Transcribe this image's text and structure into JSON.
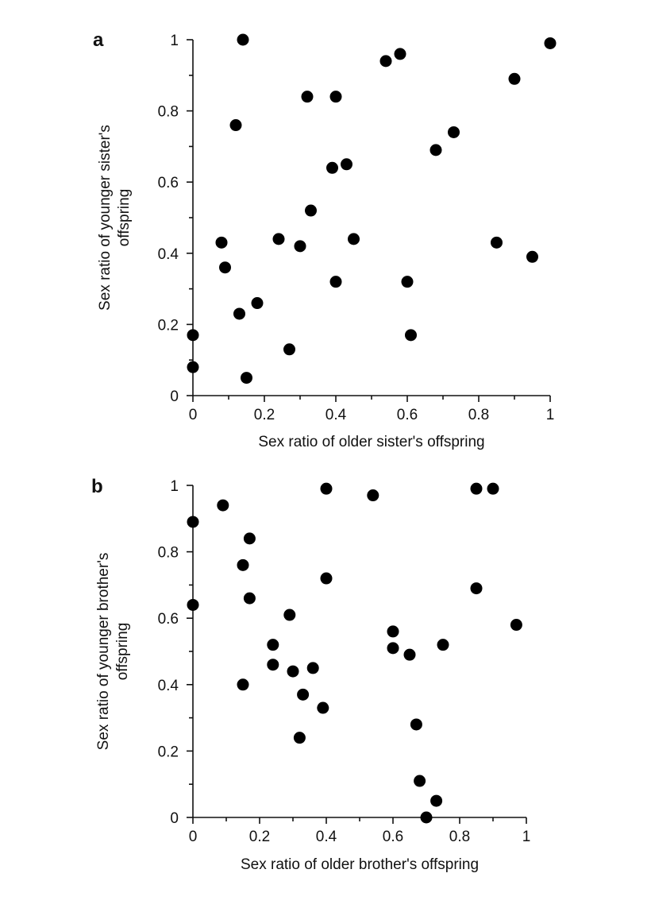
{
  "chart_data": [
    {
      "type": "scatter",
      "panel_label": "a",
      "xlabel": "Sex ratio of older sister's offspring",
      "ylabel_lines": [
        "Sex ratio of younger sister's",
        "offspring"
      ],
      "xlim": [
        0,
        1
      ],
      "ylim": [
        0,
        1
      ],
      "x_ticks": [
        0,
        0.2,
        0.4,
        0.6,
        0.8,
        1
      ],
      "x_tick_labels": [
        "0",
        "0.2",
        "0.4",
        "0.6",
        "0.8",
        "1"
      ],
      "y_ticks": [
        0,
        0.2,
        0.4,
        0.6,
        0.8,
        1
      ],
      "y_tick_labels": [
        "0",
        "0.2",
        "0.4",
        "0.6",
        "0.8",
        "1"
      ],
      "grid": false,
      "points": [
        [
          0.14,
          1.0
        ],
        [
          0.54,
          0.94
        ],
        [
          0.58,
          0.96
        ],
        [
          1.0,
          0.99
        ],
        [
          0.9,
          0.89
        ],
        [
          0.32,
          0.84
        ],
        [
          0.4,
          0.84
        ],
        [
          0.12,
          0.76
        ],
        [
          0.73,
          0.74
        ],
        [
          0.68,
          0.69
        ],
        [
          0.39,
          0.64
        ],
        [
          0.43,
          0.65
        ],
        [
          0.33,
          0.52
        ],
        [
          0.08,
          0.43
        ],
        [
          0.24,
          0.44
        ],
        [
          0.3,
          0.42
        ],
        [
          0.45,
          0.44
        ],
        [
          0.85,
          0.43
        ],
        [
          0.95,
          0.39
        ],
        [
          0.09,
          0.36
        ],
        [
          0.4,
          0.32
        ],
        [
          0.6,
          0.32
        ],
        [
          0.18,
          0.26
        ],
        [
          0.13,
          0.23
        ],
        [
          0.0,
          0.17
        ],
        [
          0.61,
          0.17
        ],
        [
          0.27,
          0.13
        ],
        [
          0.0,
          0.08
        ],
        [
          0.15,
          0.05
        ]
      ]
    },
    {
      "type": "scatter",
      "panel_label": "b",
      "xlabel": "Sex ratio of older brother's offspring",
      "ylabel_lines": [
        "Sex ratio of younger brother's",
        "offspring"
      ],
      "xlim": [
        0,
        1
      ],
      "ylim": [
        0,
        1
      ],
      "x_ticks": [
        0,
        0.2,
        0.4,
        0.6,
        0.8,
        1
      ],
      "x_tick_labels": [
        "0",
        "0.2",
        "0.4",
        "0.6",
        "0.8",
        "1"
      ],
      "y_ticks": [
        0,
        0.2,
        0.4,
        0.6,
        0.8,
        1
      ],
      "y_tick_labels": [
        "0",
        "0.2",
        "0.4",
        "0.6",
        "0.8",
        "1"
      ],
      "grid": false,
      "points": [
        [
          0.4,
          0.99
        ],
        [
          0.54,
          0.97
        ],
        [
          0.85,
          0.99
        ],
        [
          0.9,
          0.99
        ],
        [
          0.09,
          0.94
        ],
        [
          0.0,
          0.89
        ],
        [
          0.17,
          0.84
        ],
        [
          0.15,
          0.76
        ],
        [
          0.4,
          0.72
        ],
        [
          0.85,
          0.69
        ],
        [
          0.17,
          0.66
        ],
        [
          0.0,
          0.64
        ],
        [
          0.29,
          0.61
        ],
        [
          0.97,
          0.58
        ],
        [
          0.6,
          0.56
        ],
        [
          0.24,
          0.52
        ],
        [
          0.6,
          0.51
        ],
        [
          0.75,
          0.52
        ],
        [
          0.65,
          0.49
        ],
        [
          0.24,
          0.46
        ],
        [
          0.3,
          0.44
        ],
        [
          0.36,
          0.45
        ],
        [
          0.15,
          0.4
        ],
        [
          0.33,
          0.37
        ],
        [
          0.39,
          0.33
        ],
        [
          0.67,
          0.28
        ],
        [
          0.32,
          0.24
        ],
        [
          0.68,
          0.11
        ],
        [
          0.73,
          0.05
        ],
        [
          0.7,
          0.0
        ]
      ]
    }
  ]
}
